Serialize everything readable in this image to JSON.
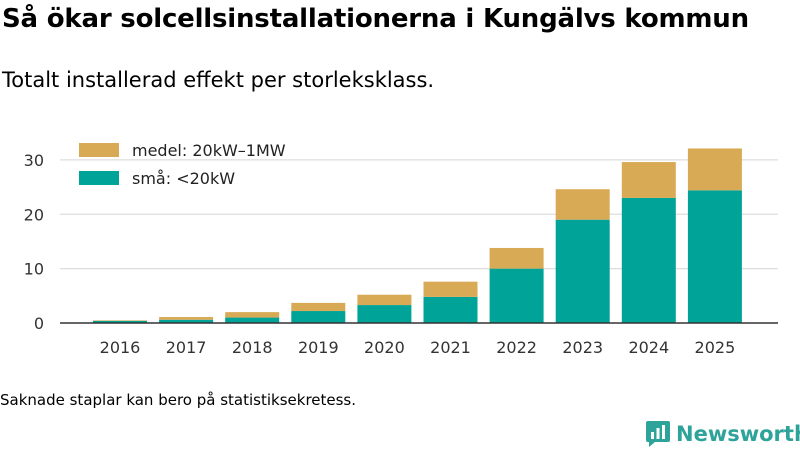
{
  "header": {
    "title": "Så ökar solcellsinstallationerna i Kungälvs kommun",
    "subtitle": "Totalt installerad effekt per storleksklass."
  },
  "footer": {
    "note": "Saknade staplar kan bero på statistiksekretess.",
    "brand": "Newsworthy",
    "brand_icon": "newsworthy-logo-icon"
  },
  "colors": {
    "small": "#00a398",
    "medium": "#d9aa55",
    "grid": "#dddddd",
    "axis": "#333333",
    "brand": "#2ea39a"
  },
  "chart_data": {
    "type": "bar",
    "stacked": true,
    "title": "Så ökar solcellsinstallationerna i Kungälvs kommun",
    "subtitle": "Totalt installerad effekt per storleksklass.",
    "xlabel": "",
    "ylabel": "",
    "categories": [
      "2016",
      "2017",
      "2018",
      "2019",
      "2020",
      "2021",
      "2022",
      "2023",
      "2024",
      "2025"
    ],
    "series": [
      {
        "name": "små: <20kW",
        "color": "#00a398",
        "values": [
          0.4,
          0.6,
          1.0,
          2.2,
          3.3,
          4.8,
          10.0,
          19.0,
          23.0,
          24.4
        ]
      },
      {
        "name": "medel: 20kW–1MW",
        "color": "#d9aa55",
        "values": [
          0.1,
          0.5,
          1.0,
          1.5,
          1.9,
          2.8,
          3.8,
          5.6,
          6.6,
          7.7
        ]
      }
    ],
    "legend_order": [
      "medel: 20kW–1MW",
      "små: <20kW"
    ],
    "legend_position": "top-left",
    "ylim": [
      0,
      32
    ],
    "yticks": [
      0,
      10,
      20,
      30
    ],
    "grid": true
  }
}
